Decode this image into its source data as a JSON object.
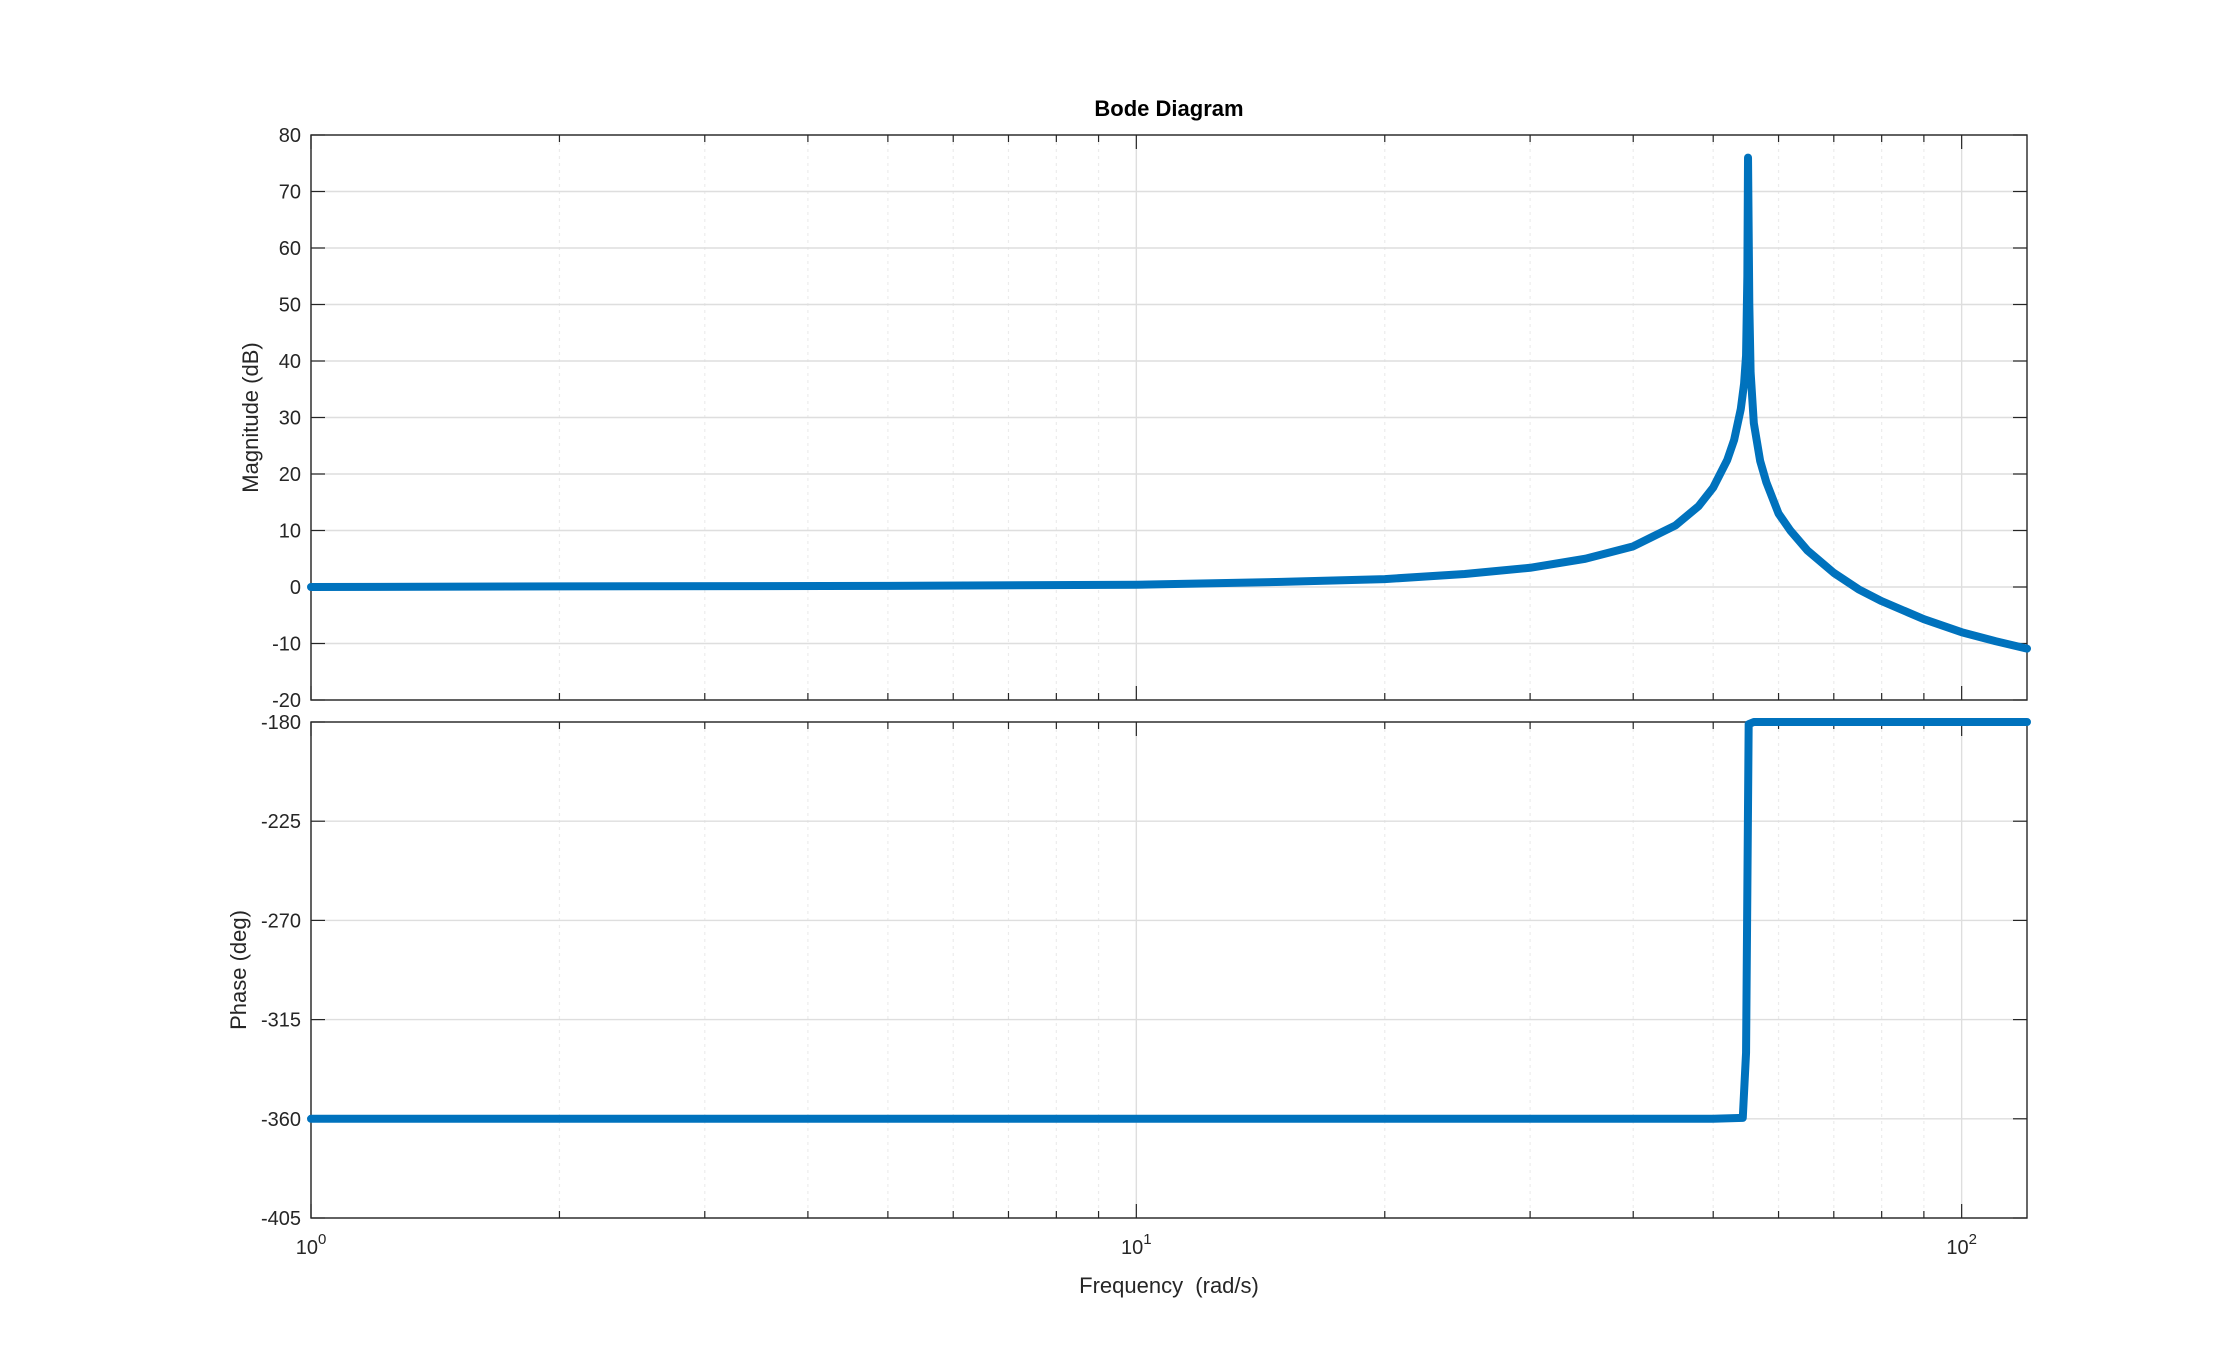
{
  "chart_data": [
    {
      "type": "line",
      "panel": "magnitude",
      "title": "Bode Diagram",
      "xlabel": "",
      "ylabel": "Magnitude (dB)",
      "xscale": "log",
      "xlim": [
        1,
        120
      ],
      "ylim": [
        -20,
        80
      ],
      "yticks": [
        -20,
        -10,
        0,
        10,
        20,
        30,
        40,
        50,
        60,
        70,
        80
      ],
      "grid": true,
      "color": "#0072bd",
      "series": [
        {
          "x": [
            1,
            2,
            5,
            10,
            15,
            20,
            25,
            30,
            35,
            40,
            45,
            48,
            50,
            52,
            53,
            54,
            54.5,
            54.8,
            55,
            55.1,
            55.3,
            55.5,
            56,
            57,
            58,
            60,
            62,
            65,
            70,
            75,
            80,
            90,
            100,
            110,
            120
          ],
          "y": [
            0,
            0.1,
            0.2,
            0.4,
            0.9,
            1.4,
            2.3,
            3.4,
            5.0,
            7.2,
            10.9,
            14.3,
            17.6,
            22.5,
            26.0,
            31.5,
            36.0,
            41.0,
            55.0,
            76.0,
            50.0,
            38.0,
            29.0,
            22.3,
            18.5,
            13.0,
            10.0,
            6.5,
            2.5,
            -0.4,
            -2.5,
            -5.7,
            -8.0,
            -9.6,
            -10.9
          ]
        }
      ]
    },
    {
      "type": "line",
      "panel": "phase",
      "xlabel": "Frequency  (rad/s)",
      "ylabel": "Phase (deg)",
      "xscale": "log",
      "xlim": [
        1,
        120
      ],
      "ylim": [
        -405,
        -180
      ],
      "yticks": [
        -405,
        -360,
        -315,
        -270,
        -225,
        -180
      ],
      "xticks": [
        {
          "value": 1,
          "base": "10",
          "exp": "0"
        },
        {
          "value": 10,
          "base": "10",
          "exp": "1"
        },
        {
          "value": 100,
          "base": "10",
          "exp": "2"
        }
      ],
      "grid": true,
      "color": "#0072bd",
      "series": [
        {
          "x": [
            1,
            10,
            30,
            50,
            54.3,
            54.8,
            55.2,
            56,
            70,
            100,
            120
          ],
          "y": [
            -360,
            -360,
            -360,
            -360,
            -359.6,
            -330,
            -181,
            -180,
            -180,
            -180,
            -180
          ]
        }
      ]
    }
  ]
}
